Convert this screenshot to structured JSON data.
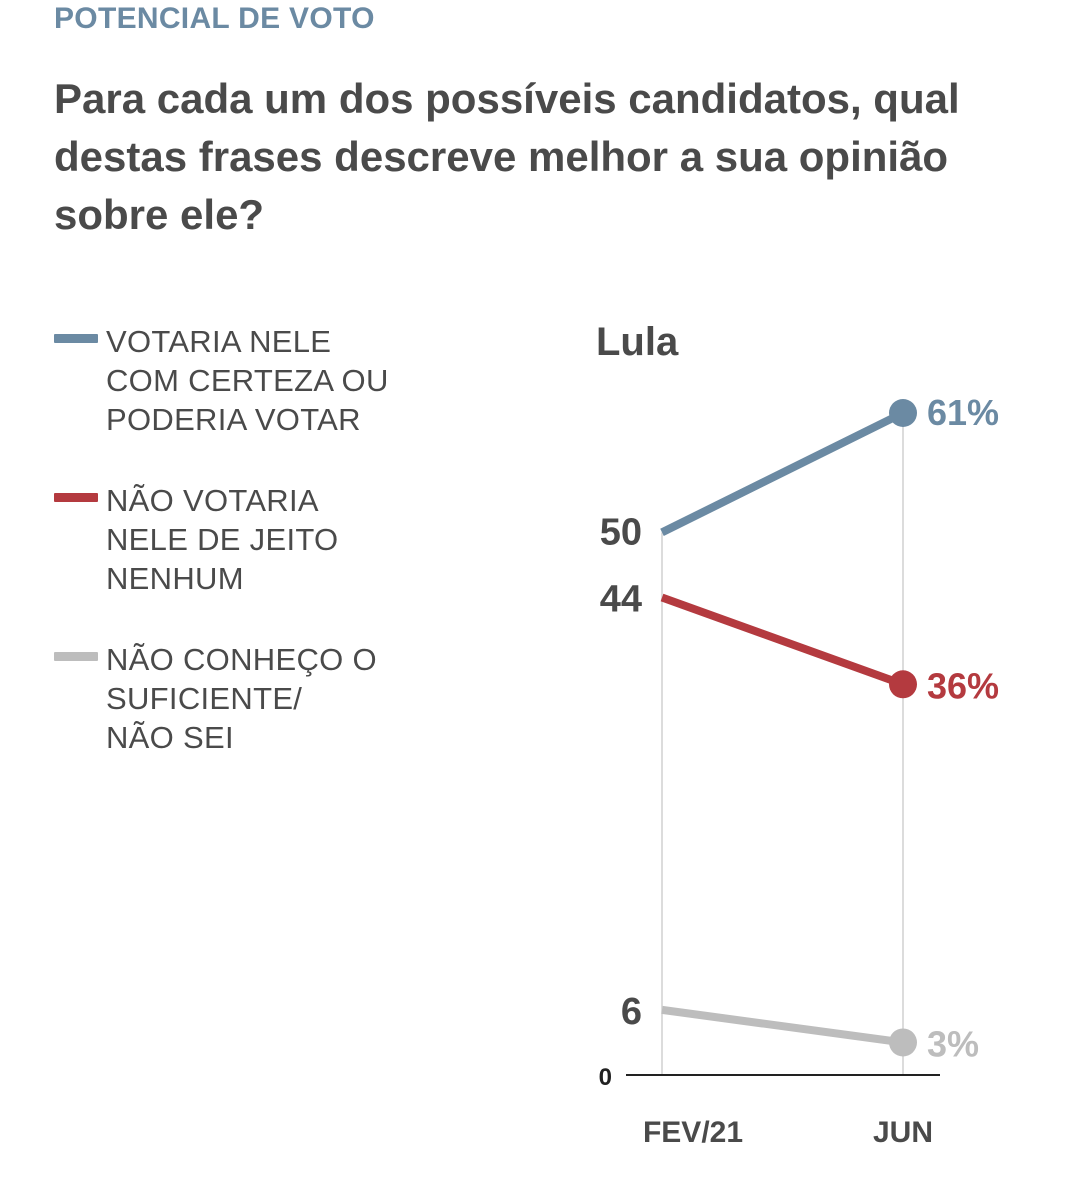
{
  "header": {
    "kicker": "POTENCIAL DE VOTO",
    "headline": "Para cada um dos possíveis candidatos, qual destas frases descreve melhor a sua opinião sobre ele?"
  },
  "legend": [
    {
      "label": "VOTARIA NELE\nCOM CERTEZA OU\nPODERIA VOTAR",
      "color": "#6b8aa3"
    },
    {
      "label": "NÃO VOTARIA\nNELE DE JEITO\nNENHUM",
      "color": "#b43a3f"
    },
    {
      "label": "NÃO CONHEÇO O\nSUFICIENTE/\nNÃO SEI",
      "color": "#bdbdbd"
    }
  ],
  "chart_data": {
    "type": "line",
    "title": "Lula",
    "categories": [
      "FEV/21",
      "JUN"
    ],
    "ylim": [
      0,
      61
    ],
    "y_tick_labels": [
      "0"
    ],
    "series": [
      {
        "name": "VOTARIA NELE COM CERTEZA OU PODERIA VOTAR",
        "values": [
          50,
          61
        ],
        "start_label": "50",
        "end_label": "61%",
        "color": "#6b8aa3"
      },
      {
        "name": "NÃO VOTARIA NELE DE JEITO NENHUM",
        "values": [
          44,
          36
        ],
        "start_label": "44",
        "end_label": "36%",
        "color": "#b43a3f"
      },
      {
        "name": "NÃO CONHEÇO O SUFICIENTE/ NÃO SEI",
        "values": [
          6,
          3
        ],
        "start_label": "6",
        "end_label": "3%",
        "color": "#bdbdbd"
      }
    ],
    "grid": false,
    "legend_position": "left"
  }
}
